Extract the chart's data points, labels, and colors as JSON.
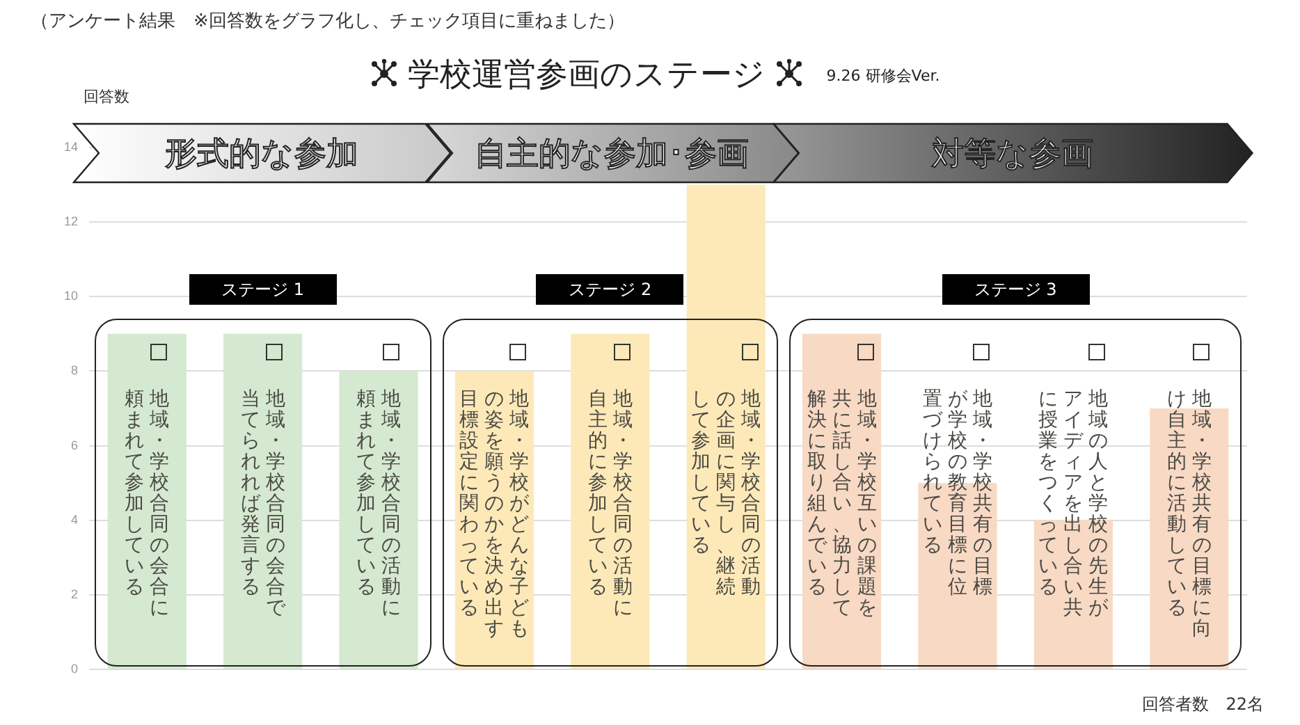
{
  "chart_data": {
    "type": "bar",
    "title": "学校運営参画のステージ",
    "subtitle": "（アンケート結果　※回答数をグラフ化し、チェック項目に重ねました）",
    "ylabel": "回答数",
    "categories": [
      "地域・学校合同の会合に頼まれて参加している",
      "地域・学校合同の会合で当てられれば発言する",
      "地域・学校合同の活動に頼まれて参加している",
      "地域・学校がどんな子どもの姿を願うのかを決め出す目標設定に関わっている",
      "地域・学校合同の活動に自主的に参加している",
      "地域・学校合同の活動の企画に関与し、継続して参加している",
      "地域・学校互いの課題を共に話し合い、協力して解決に取り組んでいる",
      "地域・学校共有の目標が学校の教育目標に位置づけられている",
      "地域の人と学校の先生がアイディアを出し合い共に授業をつくっている",
      "地域・学校共有の目標に向け自主的に活動している"
    ],
    "values": [
      9,
      9,
      8,
      8,
      9,
      13,
      9,
      5,
      4,
      7
    ],
    "colors": [
      "#d5e8d0",
      "#d5e8d0",
      "#d5e8d0",
      "#fde9b8",
      "#fde9b8",
      "#fde9b8",
      "#f8d9c4",
      "#f8d9c4",
      "#f8d9c4",
      "#f8d9c4"
    ],
    "ylim": [
      0,
      14
    ],
    "yticks": [
      0,
      2,
      4,
      6,
      8,
      10,
      12,
      14
    ],
    "grid": "y",
    "legend": false,
    "annotations": [
      "形式的な参加",
      "自主的な参加･参画",
      "対等な参画",
      "ステージ 1",
      "ステージ 2",
      "ステージ 3",
      "9.26 研修会Ver.",
      "回答者数　22名"
    ]
  }
}
